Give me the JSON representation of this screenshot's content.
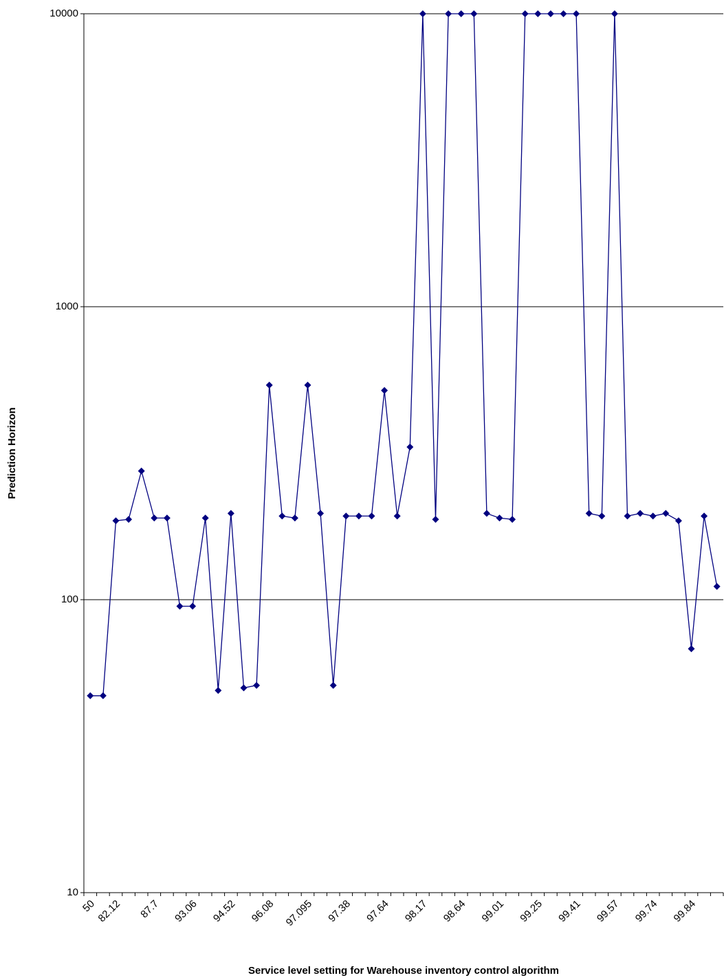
{
  "chart_data": {
    "type": "line",
    "x_label": "Service level setting for Warehouse inventory control algorithm",
    "y_label": "Prediction Horizon",
    "categories": [
      "50",
      null,
      "82.12",
      null,
      null,
      "87.7",
      null,
      null,
      "93.06",
      null,
      null,
      "94.52",
      null,
      null,
      "96.08",
      null,
      null,
      "97.095",
      null,
      null,
      "97.38",
      null,
      null,
      "97.64",
      null,
      null,
      "98.17",
      null,
      null,
      "98.64",
      null,
      null,
      "99.01",
      null,
      null,
      "99.25",
      null,
      null,
      "99.41",
      null,
      null,
      "99.57",
      null,
      null,
      "99.74",
      null,
      null,
      "99.84",
      null,
      null
    ],
    "series": [
      {
        "color": "#000080",
        "values": [
          47,
          47,
          186,
          188,
          275,
          190,
          190,
          95,
          95,
          190,
          49,
          197,
          50,
          51,
          540,
          193,
          190,
          540,
          197,
          51,
          193,
          193,
          193,
          518,
          193,
          332,
          10000,
          188,
          10000,
          10000,
          10000,
          197,
          190,
          188,
          10000,
          10000,
          10000,
          10000,
          10000,
          197,
          193,
          10000,
          193,
          197,
          193,
          197,
          186,
          68,
          193,
          111
        ]
      }
    ],
    "ylim": [
      10,
      10000
    ],
    "yticks": [
      10,
      100,
      1000,
      10000
    ],
    "log_y": true,
    "grid": true
  }
}
